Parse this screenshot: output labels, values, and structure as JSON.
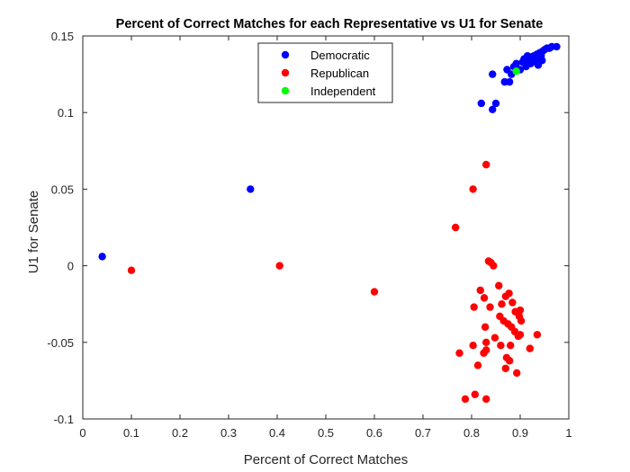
{
  "chart_data": {
    "type": "scatter",
    "title": "Percent of Correct Matches for each Representative vs U1 for Senate",
    "xlabel": "Percent of Correct Matches",
    "ylabel": "U1 for Senate",
    "xlim": [
      0,
      1
    ],
    "ylim": [
      -0.1,
      0.15
    ],
    "xticks": [
      0,
      0.1,
      0.2,
      0.3,
      0.4,
      0.5,
      0.6,
      0.7,
      0.8,
      0.9,
      1
    ],
    "xtick_labels": [
      "0",
      "0.1",
      "0.2",
      "0.3",
      "0.4",
      "0.5",
      "0.6",
      "0.7",
      "0.8",
      "0.9",
      "1"
    ],
    "yticks": [
      -0.1,
      -0.05,
      0,
      0.05,
      0.1,
      0.15
    ],
    "ytick_labels": [
      "-0.1",
      "-0.05",
      "0",
      "0.05",
      "0.1",
      "0.15"
    ],
    "grid": false,
    "legend_position": "top-center",
    "series": [
      {
        "name": "Democratic",
        "color": "#0000ff",
        "points": [
          [
            0.04,
            0.006
          ],
          [
            0.345,
            0.05
          ],
          [
            0.82,
            0.106
          ],
          [
            0.843,
            0.102
          ],
          [
            0.85,
            0.106
          ],
          [
            0.843,
            0.125
          ],
          [
            0.868,
            0.12
          ],
          [
            0.878,
            0.12
          ],
          [
            0.882,
            0.125
          ],
          [
            0.873,
            0.128
          ],
          [
            0.887,
            0.13
          ],
          [
            0.892,
            0.132
          ],
          [
            0.9,
            0.128
          ],
          [
            0.905,
            0.133
          ],
          [
            0.908,
            0.135
          ],
          [
            0.912,
            0.13
          ],
          [
            0.916,
            0.134
          ],
          [
            0.92,
            0.136
          ],
          [
            0.925,
            0.133
          ],
          [
            0.928,
            0.137
          ],
          [
            0.931,
            0.135
          ],
          [
            0.934,
            0.138
          ],
          [
            0.936,
            0.134
          ],
          [
            0.94,
            0.139
          ],
          [
            0.943,
            0.137
          ],
          [
            0.946,
            0.14
          ],
          [
            0.95,
            0.141
          ],
          [
            0.955,
            0.142
          ],
          [
            0.96,
            0.142
          ],
          [
            0.965,
            0.143
          ],
          [
            0.975,
            0.143
          ],
          [
            0.945,
            0.134
          ],
          [
            0.937,
            0.131
          ],
          [
            0.922,
            0.132
          ],
          [
            0.915,
            0.137
          ]
        ]
      },
      {
        "name": "Republican",
        "color": "#ff0000",
        "points": [
          [
            0.1,
            -0.003
          ],
          [
            0.405,
            0.0
          ],
          [
            0.6,
            -0.017
          ],
          [
            0.767,
            0.025
          ],
          [
            0.803,
            0.05
          ],
          [
            0.83,
            0.066
          ],
          [
            0.835,
            0.003
          ],
          [
            0.84,
            0.002
          ],
          [
            0.845,
            0.0
          ],
          [
            0.818,
            -0.016
          ],
          [
            0.826,
            -0.021
          ],
          [
            0.805,
            -0.027
          ],
          [
            0.838,
            -0.027
          ],
          [
            0.856,
            -0.013
          ],
          [
            0.862,
            -0.025
          ],
          [
            0.87,
            -0.02
          ],
          [
            0.877,
            -0.018
          ],
          [
            0.884,
            -0.024
          ],
          [
            0.89,
            -0.03
          ],
          [
            0.9,
            -0.029
          ],
          [
            0.898,
            -0.033
          ],
          [
            0.902,
            -0.036
          ],
          [
            0.858,
            -0.033
          ],
          [
            0.866,
            -0.036
          ],
          [
            0.875,
            -0.038
          ],
          [
            0.882,
            -0.04
          ],
          [
            0.889,
            -0.043
          ],
          [
            0.896,
            -0.046
          ],
          [
            0.9,
            -0.045
          ],
          [
            0.828,
            -0.04
          ],
          [
            0.848,
            -0.047
          ],
          [
            0.83,
            -0.05
          ],
          [
            0.803,
            -0.052
          ],
          [
            0.86,
            -0.052
          ],
          [
            0.88,
            -0.052
          ],
          [
            0.775,
            -0.057
          ],
          [
            0.825,
            -0.057
          ],
          [
            0.83,
            -0.055
          ],
          [
            0.872,
            -0.06
          ],
          [
            0.878,
            -0.062
          ],
          [
            0.92,
            -0.054
          ],
          [
            0.935,
            -0.045
          ],
          [
            0.813,
            -0.065
          ],
          [
            0.87,
            -0.067
          ],
          [
            0.893,
            -0.07
          ],
          [
            0.787,
            -0.087
          ],
          [
            0.807,
            -0.084
          ],
          [
            0.83,
            -0.087
          ]
        ]
      },
      {
        "name": "Independent",
        "color": "#00ff00",
        "points": [
          [
            0.892,
            0.127
          ]
        ]
      }
    ]
  }
}
